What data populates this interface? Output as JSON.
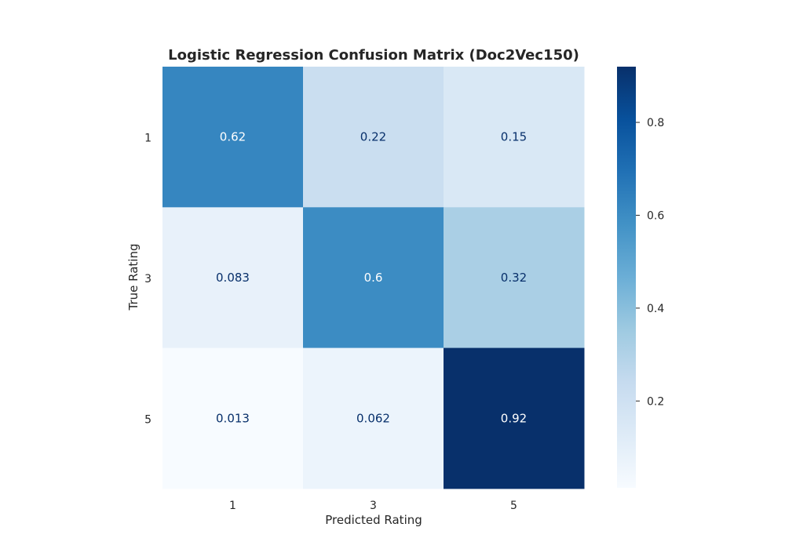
{
  "chart_data": {
    "type": "heatmap",
    "title": "Logistic Regression Confusion Matrix (Doc2Vec150)",
    "xlabel": "Predicted Rating",
    "ylabel": "True Rating",
    "x_categories": [
      "1",
      "3",
      "5"
    ],
    "y_categories": [
      "1",
      "3",
      "5"
    ],
    "values": [
      [
        0.62,
        0.22,
        0.15
      ],
      [
        0.083,
        0.6,
        0.32
      ],
      [
        0.013,
        0.062,
        0.92
      ]
    ],
    "value_labels": [
      [
        "0.62",
        "0.22",
        "0.15"
      ],
      [
        "0.083",
        "0.6",
        "0.32"
      ],
      [
        "0.013",
        "0.062",
        "0.92"
      ]
    ],
    "colorbar": {
      "vmin": 0.013,
      "vmax": 0.92,
      "ticks": [
        0.2,
        0.4,
        0.6,
        0.8
      ],
      "tick_labels": [
        "0.2",
        "0.4",
        "0.6",
        "0.8"
      ]
    },
    "colormap": "Blues",
    "colormap_stops": [
      "#f7fbff",
      "#deebf7",
      "#c6dbef",
      "#9ecae1",
      "#6baed6",
      "#4292c6",
      "#2171b5",
      "#08519c",
      "#08306b"
    ],
    "text_color_light": "#ffffff",
    "text_color_dark": "#08306b",
    "grid": false
  }
}
